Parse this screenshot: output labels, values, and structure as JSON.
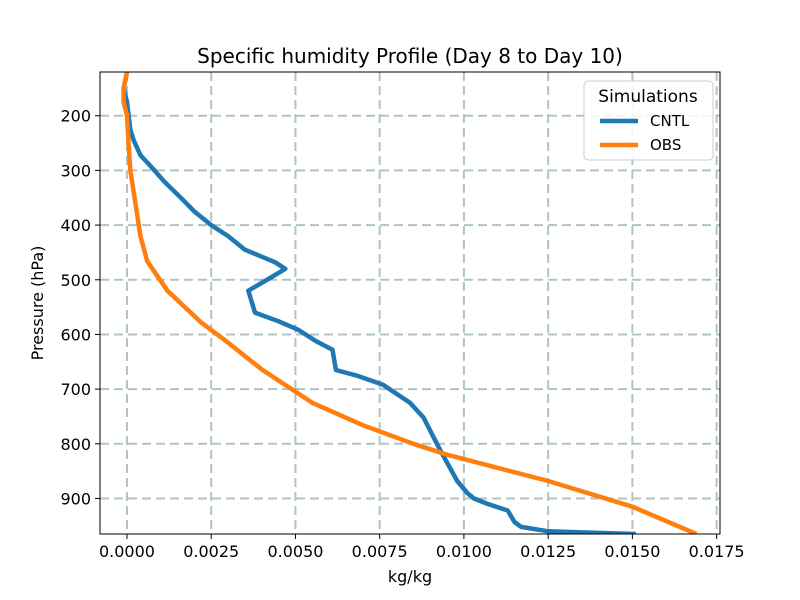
{
  "chart_data": {
    "type": "line",
    "title": "Specific humidity Profile (Day 8 to Day 10)",
    "xlabel": "kg/kg",
    "ylabel": "Pressure (hPa)",
    "xlim": [
      -0.0008,
      0.0176
    ],
    "ylim": [
      965,
      120
    ],
    "y_inverted": true,
    "x_ticks": [
      0.0,
      0.0025,
      0.005,
      0.0075,
      0.01,
      0.0125,
      0.015,
      0.0175
    ],
    "x_tick_labels": [
      "0.0000",
      "0.0025",
      "0.0050",
      "0.0075",
      "0.0100",
      "0.0125",
      "0.0150",
      "0.0175"
    ],
    "y_ticks": [
      200,
      300,
      400,
      500,
      600,
      700,
      800,
      900
    ],
    "y_tick_labels": [
      "200",
      "300",
      "400",
      "500",
      "600",
      "700",
      "800",
      "900"
    ],
    "grid": true,
    "legend": {
      "title": "Simulations",
      "placement": "top-right"
    },
    "series": [
      {
        "name": "CNTL",
        "color": "#1f77b4",
        "points": [
          [
            0.0151,
            965
          ],
          [
            0.0135,
            962
          ],
          [
            0.0125,
            960
          ],
          [
            0.0117,
            952
          ],
          [
            0.0115,
            943
          ],
          [
            0.0113,
            922
          ],
          [
            0.0107,
            910
          ],
          [
            0.0103,
            900
          ],
          [
            0.0101,
            890
          ],
          [
            0.0098,
            868
          ],
          [
            0.0093,
            812
          ],
          [
            0.0088,
            752
          ],
          [
            0.0084,
            725
          ],
          [
            0.0076,
            692
          ],
          [
            0.0068,
            675
          ],
          [
            0.0062,
            665
          ],
          [
            0.0061,
            628
          ],
          [
            0.0056,
            612
          ],
          [
            0.0051,
            592
          ],
          [
            0.0045,
            576
          ],
          [
            0.0038,
            560
          ],
          [
            0.0037,
            540
          ],
          [
            0.0036,
            520
          ],
          [
            0.0043,
            495
          ],
          [
            0.0047,
            480
          ],
          [
            0.0044,
            468
          ],
          [
            0.0035,
            445
          ],
          [
            0.003,
            420
          ],
          [
            0.0025,
            400
          ],
          [
            0.002,
            375
          ],
          [
            0.0016,
            350
          ],
          [
            0.0011,
            320
          ],
          [
            0.0007,
            292
          ],
          [
            0.0004,
            272
          ],
          [
            0.0002,
            245
          ],
          [
            0.0001,
            225
          ],
          [
            5e-05,
            200
          ],
          [
            0.0,
            175
          ],
          [
            -0.0001,
            150
          ],
          [
            0.0,
            120
          ]
        ]
      },
      {
        "name": "OBS",
        "color": "#ff7f0e",
        "points": [
          [
            0.0169,
            965
          ],
          [
            0.015,
            915
          ],
          [
            0.0125,
            868
          ],
          [
            0.0095,
            820
          ],
          [
            0.0085,
            800
          ],
          [
            0.007,
            766
          ],
          [
            0.0055,
            725
          ],
          [
            0.004,
            664
          ],
          [
            0.003,
            615
          ],
          [
            0.0022,
            578
          ],
          [
            0.0012,
            520
          ],
          [
            0.0006,
            466
          ],
          [
            0.0004,
            420
          ],
          [
            0.0003,
            380
          ],
          [
            0.0002,
            340
          ],
          [
            0.0001,
            300
          ],
          [
            5e-05,
            250
          ],
          [
            0.0,
            200
          ],
          [
            -0.0001,
            175
          ],
          [
            -0.0001,
            150
          ],
          [
            0.0,
            120
          ]
        ]
      }
    ]
  }
}
